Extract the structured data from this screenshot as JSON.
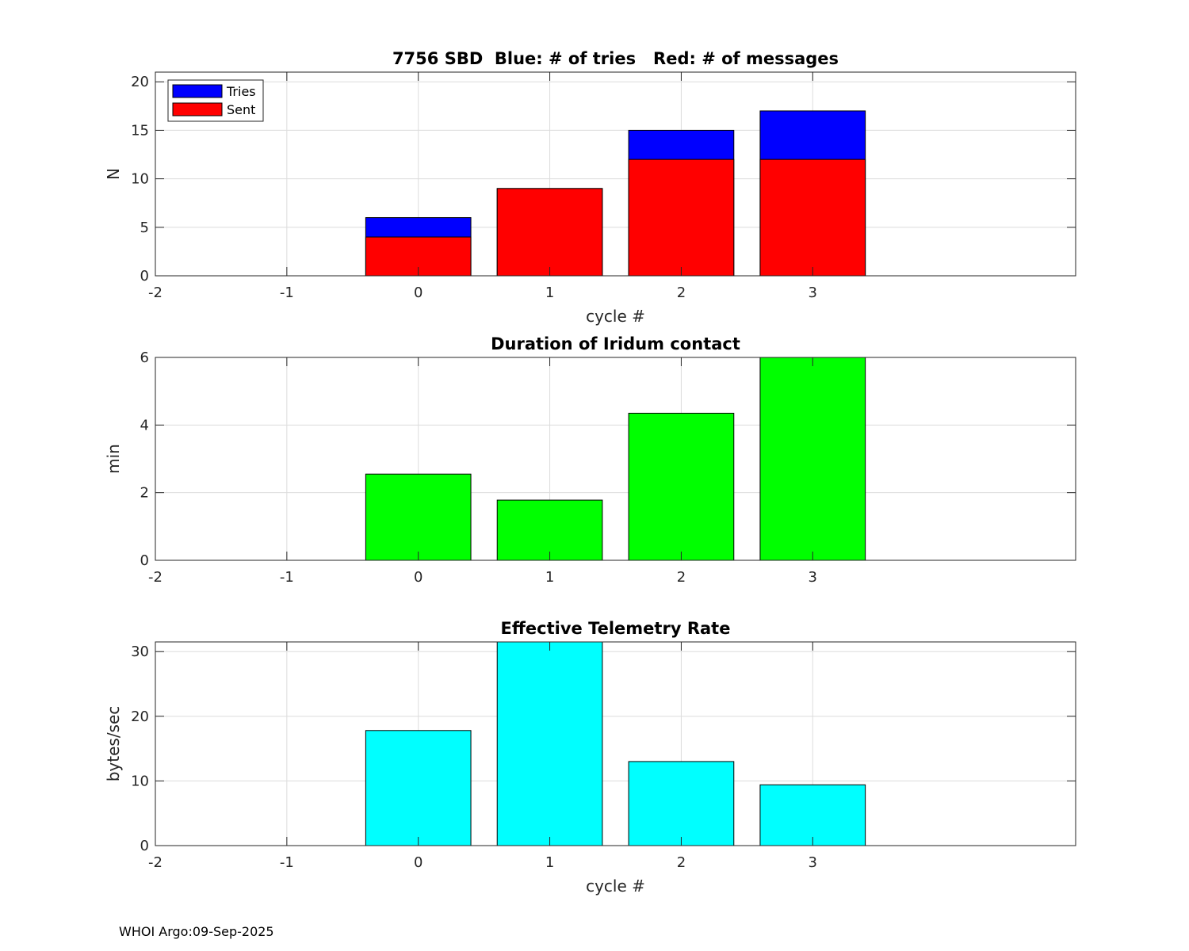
{
  "chart_data": [
    {
      "type": "bar",
      "stacked": "overlay",
      "title": "7756 SBD  Blue: # of tries   Red: # of messages",
      "xlabel": "cycle #",
      "ylabel": "N",
      "x": [
        0,
        1,
        2,
        3
      ],
      "xlim": [
        -2,
        5
      ],
      "ylim": [
        0,
        21
      ],
      "xticks": [
        "-2",
        "-1",
        "0",
        "1",
        "2",
        "3"
      ],
      "yticks": [
        "0",
        "5",
        "10",
        "15",
        "20"
      ],
      "grid": true,
      "legend_position": "top-left",
      "series": [
        {
          "name": "Tries",
          "color": "#0000ff",
          "values": [
            6,
            9,
            15,
            17
          ]
        },
        {
          "name": "Sent",
          "color": "#ff0000",
          "values": [
            4,
            9,
            12,
            12
          ]
        }
      ]
    },
    {
      "type": "bar",
      "title": "Duration of Iridum contact",
      "xlabel": "",
      "ylabel": "min",
      "x": [
        0,
        1,
        2,
        3
      ],
      "xlim": [
        -2,
        5
      ],
      "ylim": [
        0,
        6
      ],
      "xticks": [
        "-2",
        "-1",
        "0",
        "1",
        "2",
        "3"
      ],
      "yticks": [
        "0",
        "2",
        "4",
        "6"
      ],
      "grid": true,
      "series": [
        {
          "color": "#00ff00",
          "values": [
            2.55,
            1.78,
            4.35,
            6.0
          ]
        }
      ]
    },
    {
      "type": "bar",
      "title": "Effective Telemetry Rate",
      "xlabel": "cycle #",
      "ylabel": "bytes/sec",
      "x": [
        0,
        1,
        2,
        3
      ],
      "xlim": [
        -2,
        5
      ],
      "ylim": [
        0,
        31.5
      ],
      "xticks": [
        "-2",
        "-1",
        "0",
        "1",
        "2",
        "3"
      ],
      "yticks": [
        "0",
        "10",
        "20",
        "30"
      ],
      "grid": true,
      "series": [
        {
          "color": "#00ffff",
          "values": [
            17.8,
            31.5,
            13.0,
            9.4
          ]
        }
      ]
    }
  ],
  "footer": "WHOI Argo:09-Sep-2025"
}
